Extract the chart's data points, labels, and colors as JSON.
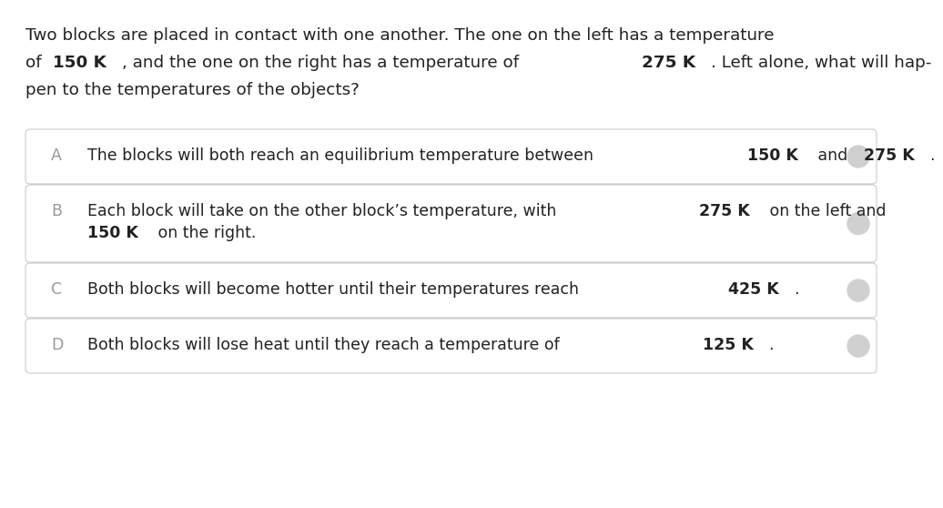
{
  "background_color": "#ffffff",
  "box_border_color": "#cccccc",
  "text_color": "#222222",
  "letter_color": "#999999",
  "circle_color": "#d0d0d0",
  "font_size_question": 13.2,
  "font_size_option": 12.5,
  "font_size_letter": 12.5,
  "q_lines": [
    [
      {
        "text": "Two blocks are placed in contact with one another. The one on the left has a temperature",
        "bold": false
      }
    ],
    [
      {
        "text": "of ",
        "bold": false
      },
      {
        "text": "150 K",
        "bold": true
      },
      {
        "text": ", and the one on the right has a temperature of ",
        "bold": false
      },
      {
        "text": "275 K",
        "bold": true
      },
      {
        "text": ". Left alone, what will hap-",
        "bold": false
      }
    ],
    [
      {
        "text": "pen to the temperatures of the objects?",
        "bold": false
      }
    ]
  ],
  "options": [
    {
      "letter": "A",
      "lines": [
        [
          {
            "text": "The blocks will both reach an equilibrium temperature between ",
            "bold": false
          },
          {
            "text": "150 K",
            "bold": true
          },
          {
            "text": " and ",
            "bold": false
          },
          {
            "text": "275 K",
            "bold": true
          },
          {
            "text": ".",
            "bold": false
          }
        ]
      ]
    },
    {
      "letter": "B",
      "lines": [
        [
          {
            "text": "Each block will take on the other block’s temperature, with ",
            "bold": false
          },
          {
            "text": "275 K",
            "bold": true
          },
          {
            "text": " on the left and",
            "bold": false
          }
        ],
        [
          {
            "text": "150 K",
            "bold": true
          },
          {
            "text": " on the right.",
            "bold": false
          }
        ]
      ]
    },
    {
      "letter": "C",
      "lines": [
        [
          {
            "text": "Both blocks will become hotter until their temperatures reach ",
            "bold": false
          },
          {
            "text": "425 K",
            "bold": true
          },
          {
            "text": ".",
            "bold": false
          }
        ]
      ]
    },
    {
      "letter": "D",
      "lines": [
        [
          {
            "text": "Both blocks will lose heat until they reach a temperature of ",
            "bold": false
          },
          {
            "text": "125 K",
            "bold": true
          },
          {
            "text": ".",
            "bold": false
          }
        ]
      ]
    }
  ]
}
